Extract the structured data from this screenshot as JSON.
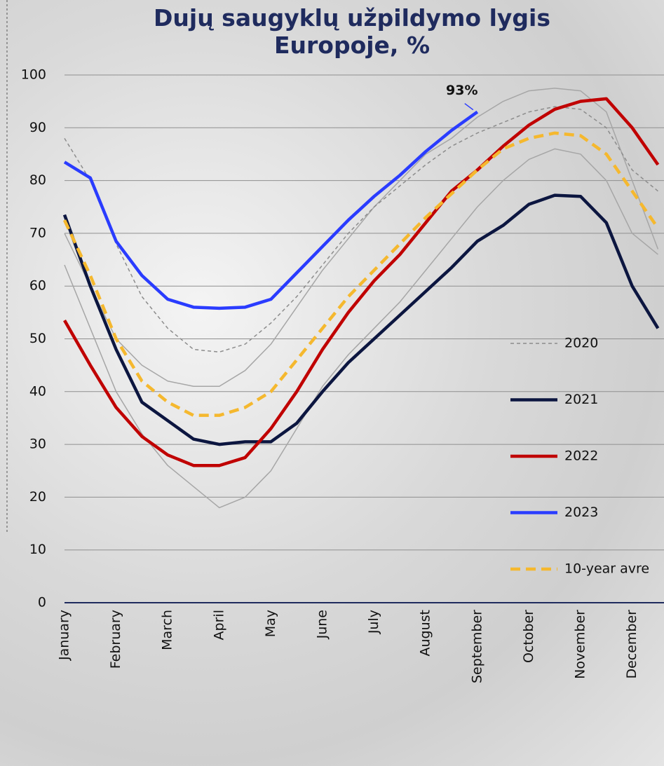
{
  "chart_data": {
    "type": "line",
    "title": "Dujų saugyklų užpildymo lygis Europoje, %",
    "categories": [
      "January",
      null,
      "February",
      null,
      "March",
      null,
      "April",
      null,
      "May",
      null,
      "June",
      null,
      "July",
      null,
      "August",
      null,
      "September",
      null,
      "October",
      null,
      "November",
      null,
      "December",
      null
    ],
    "series": [
      {
        "color": "#a6a6a6",
        "dashed": false,
        "thin": true,
        "values": [
          70,
          60,
          50,
          45,
          42,
          41,
          41,
          44,
          49,
          56,
          63,
          69,
          75,
          80,
          85,
          88,
          92,
          95,
          97,
          97.5,
          97,
          93,
          80,
          67
        ]
      },
      {
        "color": "#a6a6a6",
        "dashed": false,
        "thin": true,
        "values": [
          64,
          52,
          40,
          32,
          26,
          22,
          18,
          20,
          25,
          33,
          41,
          47,
          52,
          57,
          63,
          69,
          75,
          80,
          84,
          86,
          85,
          80,
          70,
          66
        ]
      },
      {
        "name": "2020",
        "color": "#8c8c8c",
        "dashed": true,
        "thin": true,
        "values": [
          88,
          80,
          68,
          58,
          52,
          48,
          47.5,
          49,
          53,
          58,
          64,
          70,
          75,
          79,
          83,
          86.5,
          89,
          91,
          93,
          94,
          93.5,
          90,
          82,
          78
        ]
      },
      {
        "name": "2021",
        "color": "#0c1640",
        "dashed": false,
        "thin": false,
        "values": [
          73.5,
          60,
          48,
          38,
          34.5,
          31,
          30,
          30.5,
          30.5,
          34,
          40,
          45.5,
          50,
          54.5,
          59,
          63.5,
          68.5,
          71.5,
          75.5,
          77.2,
          77,
          72,
          60,
          52
        ]
      },
      {
        "name": "2022",
        "color": "#c00000",
        "dashed": false,
        "thin": false,
        "values": [
          53.5,
          45,
          37,
          31.5,
          28,
          26,
          26,
          27.5,
          33,
          40,
          48,
          55,
          61,
          66,
          72,
          78,
          82,
          86.5,
          90.5,
          93.5,
          95,
          95.5,
          90,
          83
        ]
      },
      {
        "name": "2023",
        "color": "#2a3cff",
        "dashed": false,
        "thin": false,
        "values": [
          83.5,
          80.5,
          68.5,
          62,
          57.5,
          56,
          55.8,
          56,
          57.5,
          62.5,
          67.5,
          72.5,
          77,
          81,
          85.5,
          89.5,
          93,
          null,
          null,
          null,
          null,
          null,
          null,
          null
        ]
      },
      {
        "name": "10-year avre",
        "color": "#f5b82e",
        "dashed": true,
        "thin": false,
        "values": [
          72.5,
          62,
          50,
          42,
          38,
          35.5,
          35.5,
          37,
          40,
          46,
          52,
          58,
          63,
          68,
          73,
          77.5,
          82,
          86,
          88,
          89,
          88.5,
          85,
          78,
          71
        ]
      }
    ],
    "annotation": {
      "text": "93%",
      "series": 5
    },
    "ylim": [
      0,
      100
    ],
    "yticks": [
      0,
      10,
      20,
      30,
      40,
      50,
      60,
      70,
      80,
      90,
      100
    ],
    "grid": true,
    "legend": "right"
  }
}
